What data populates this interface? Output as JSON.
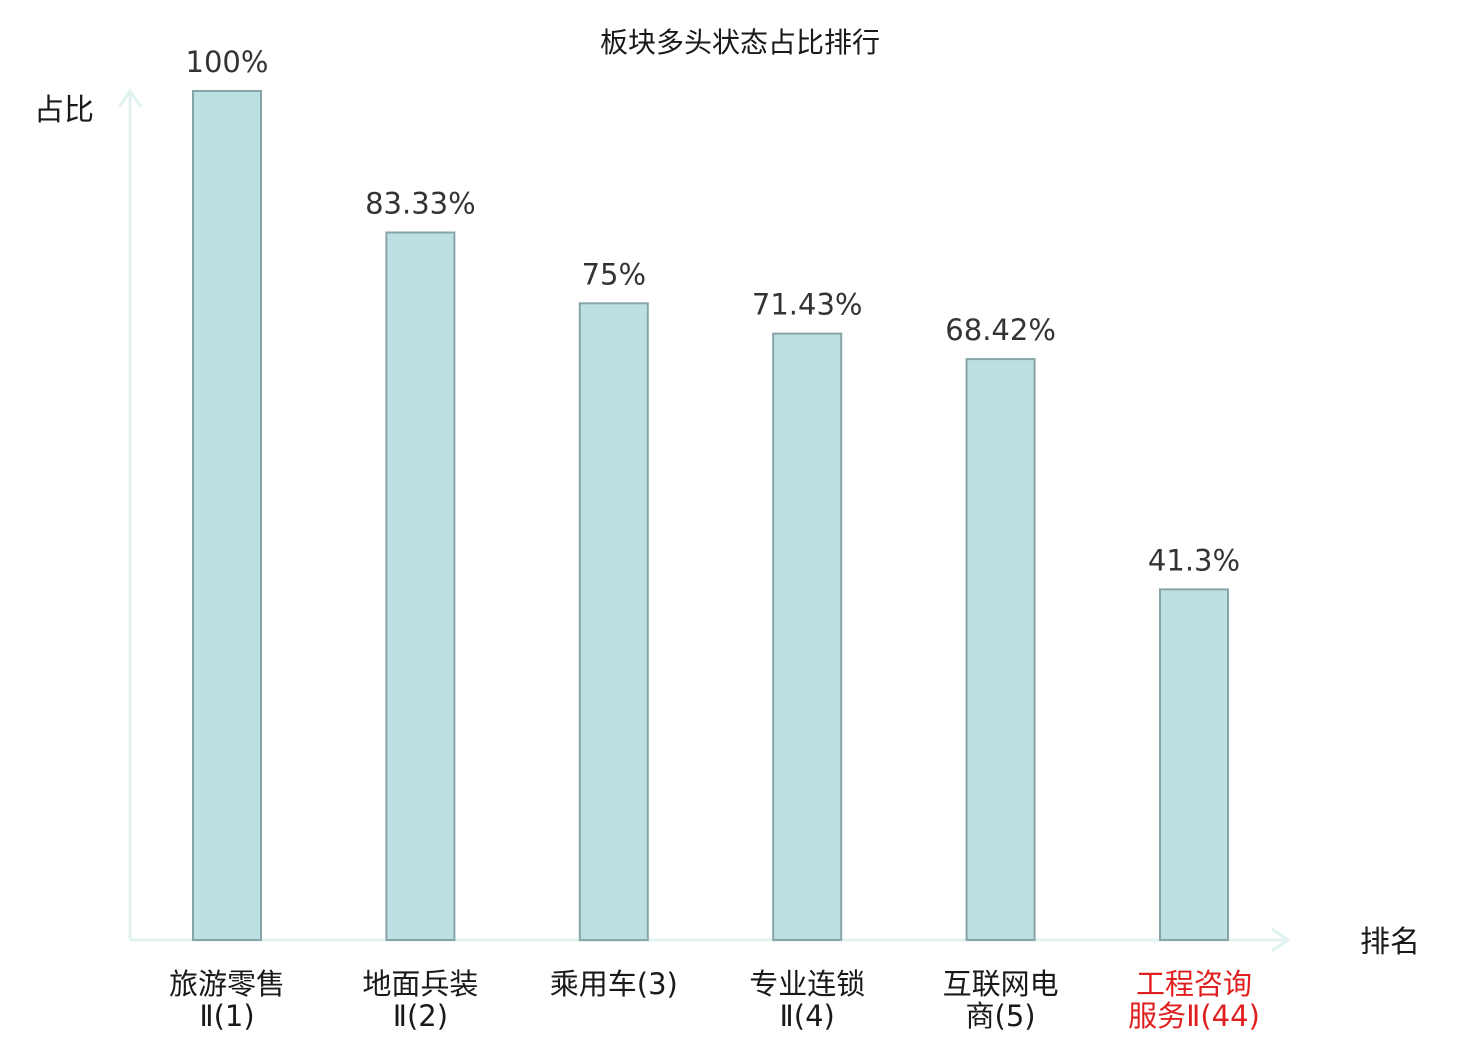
{
  "chart_data": {
    "type": "bar",
    "title": "板块多头状态占比排行",
    "xlabel": "排名",
    "ylabel": "占比",
    "ylim": [
      0,
      100
    ],
    "grid": false,
    "legend": "none",
    "categories": [
      [
        "旅游零售",
        "Ⅱ(1)"
      ],
      [
        "地面兵装",
        "Ⅱ(2)"
      ],
      [
        "乘用车(3)"
      ],
      [
        "专业连锁",
        "Ⅱ(4)"
      ],
      [
        "互联网电",
        "商(5)"
      ],
      [
        "工程咨询",
        "服务Ⅱ(44)"
      ]
    ],
    "values": [
      100,
      83.33,
      75,
      71.43,
      68.42,
      41.3
    ],
    "value_labels": [
      "100%",
      "83.33%",
      "75%",
      "71.43%",
      "68.42%",
      "41.3%"
    ],
    "highlight_index": 5,
    "colors": {
      "bar_fill": "#bde1e3",
      "bar_stroke": "#87a5a8",
      "axis": "#e0f3f1",
      "highlight_text": "#e02020",
      "text": "#1a1a1a"
    }
  }
}
